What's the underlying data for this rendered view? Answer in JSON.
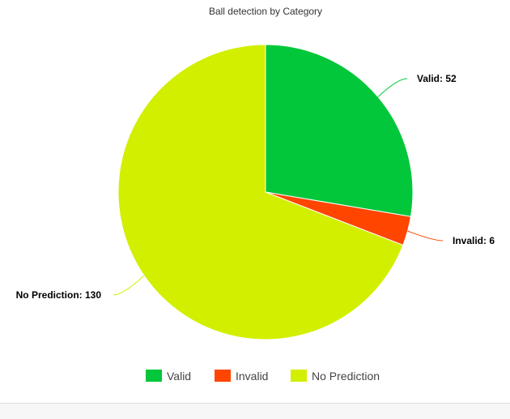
{
  "chart_data": {
    "type": "pie",
    "title": "Ball detection by Category",
    "slices": [
      {
        "label": "Valid",
        "value": 52,
        "color": "#02c73a"
      },
      {
        "label": "Invalid",
        "value": 6,
        "color": "#ff4500"
      },
      {
        "label": "No Prediction",
        "value": 130,
        "color": "#d2ef00"
      }
    ],
    "data_labels": [
      "Valid: 52",
      "Invalid: 6",
      "No Prediction: 130"
    ],
    "legend": {
      "position": "bottom",
      "entries": [
        "Valid",
        "Invalid",
        "No Prediction"
      ]
    }
  }
}
